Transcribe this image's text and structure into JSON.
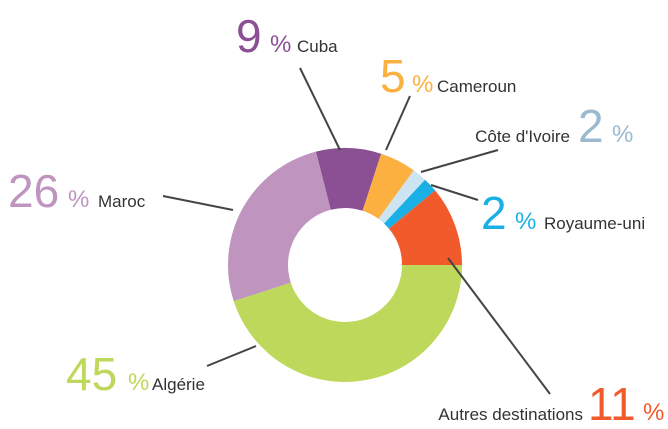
{
  "chart_data": {
    "type": "donut",
    "unit": "%",
    "categories": [
      "Algérie",
      "Maroc",
      "Cuba",
      "Cameroun",
      "Côte d'Ivoire",
      "Royaume-uni",
      "Autres destinations"
    ],
    "values": [
      45,
      26,
      9,
      5,
      2,
      2,
      11
    ],
    "colors": [
      "#bdd85a",
      "#bf95bf",
      "#8b4f93",
      "#fbb040",
      "#cde4f2",
      "#1ab0e5",
      "#f15a2b"
    ]
  }
}
